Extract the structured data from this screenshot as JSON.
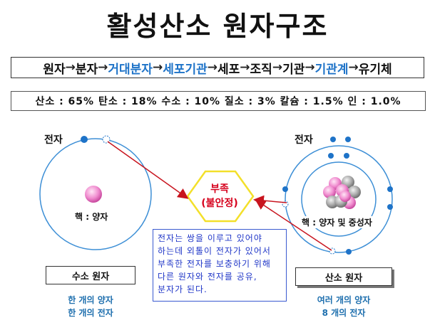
{
  "title": "활성산소 원자구조",
  "chain": [
    {
      "text": "원자",
      "highlight": false
    },
    {
      "text": "→",
      "highlight": false
    },
    {
      "text": "분자",
      "highlight": false
    },
    {
      "text": "→",
      "highlight": false
    },
    {
      "text": "거대분자",
      "highlight": true
    },
    {
      "text": "→",
      "highlight": false
    },
    {
      "text": "세포기관",
      "highlight": true
    },
    {
      "text": "→",
      "highlight": false
    },
    {
      "text": "세포",
      "highlight": false
    },
    {
      "text": "→",
      "highlight": false
    },
    {
      "text": "조직",
      "highlight": false
    },
    {
      "text": "→",
      "highlight": false
    },
    {
      "text": "기관",
      "highlight": false
    },
    {
      "text": "→",
      "highlight": false
    },
    {
      "text": "기관계",
      "highlight": true
    },
    {
      "text": "→",
      "highlight": false
    },
    {
      "text": "유기체",
      "highlight": false
    }
  ],
  "ratios": "산소 : 65%  탄소 : 18%  수소 : 10%  질소 : 3%  칼슘 : 1.5%  인 : 1.0%",
  "hydrogen": {
    "electron_label": "전자",
    "nucleus_label": "핵 : 양자",
    "name": "수소 원자",
    "caption_line1": "한 개의 양자",
    "caption_line2": "한 개의 전자"
  },
  "oxygen": {
    "electron_label": "전자",
    "nucleus_label": "핵 : 양자 및 중성자",
    "name": "산소 원자",
    "caption_line1": "여러 개의 양자",
    "caption_line2": "8 개의 전자"
  },
  "deficiency": {
    "line1": "부족",
    "line2": "(불안정)"
  },
  "note": "전자는 쌍을 이루고 있어야 하는데 외톨이 전자가 있어서 부족한 전자를 보충하기 위해 다른 원자와 전자를 공유, 분자가 된다.",
  "colors": {
    "accent_blue": "#1e73c8",
    "orbit": "#3d8fd6",
    "arrow_red": "#c8141e",
    "warning_red": "#d6001c",
    "note_blue": "#2238c8",
    "hexagon_yellow": "#f3e02a"
  }
}
